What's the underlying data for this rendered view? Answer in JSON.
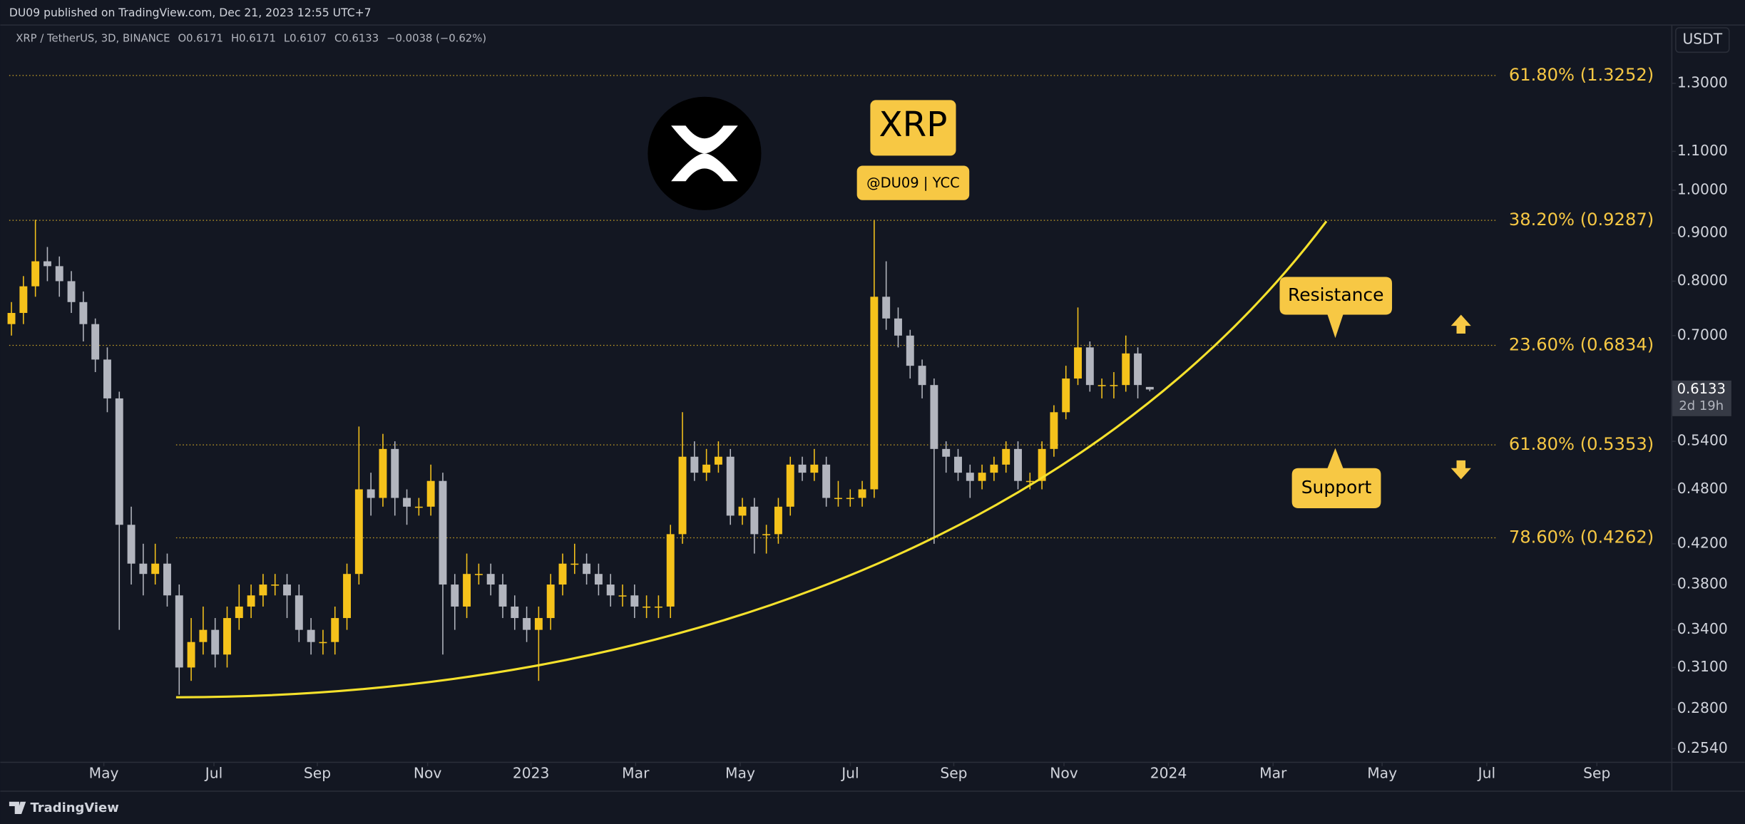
{
  "header": {
    "published": "DU09 published on TradingView.com, Dec 21, 2023 12:55 UTC+7"
  },
  "chart_data": {
    "type": "candlestick",
    "symbol": "XRP / TetherUS, 3D, BINANCE",
    "ohlc_prefixes": [
      "O",
      "H",
      "L",
      "C"
    ],
    "change_label": "−0.0038 (−0.62%)",
    "open": [
      0.72,
      0.74,
      0.79,
      0.84,
      0.83,
      0.8,
      0.76,
      0.72,
      0.66,
      0.6,
      0.44,
      0.4,
      0.39,
      0.4,
      0.37,
      0.31,
      0.33,
      0.34,
      0.32,
      0.35,
      0.36,
      0.37,
      0.38,
      0.38,
      0.37,
      0.34,
      0.33,
      0.33,
      0.35,
      0.39,
      0.48,
      0.47,
      0.53,
      0.47,
      0.46,
      0.46,
      0.49,
      0.38,
      0.36,
      0.39,
      0.39,
      0.38,
      0.36,
      0.35,
      0.34,
      0.35,
      0.38,
      0.4,
      0.4,
      0.39,
      0.38,
      0.37,
      0.37,
      0.36,
      0.36,
      0.36,
      0.43,
      0.52,
      0.5,
      0.51,
      0.52,
      0.45,
      0.46,
      0.43,
      0.43,
      0.46,
      0.51,
      0.5,
      0.51,
      0.47,
      0.47,
      0.47,
      0.48,
      0.77,
      0.73,
      0.7,
      0.65,
      0.62,
      0.53,
      0.52,
      0.5,
      0.49,
      0.5,
      0.51,
      0.53,
      0.49,
      0.49,
      0.53,
      0.58,
      0.63,
      0.68,
      0.62,
      0.62,
      0.62,
      0.67,
      0.6171
    ],
    "high": [
      0.76,
      0.81,
      0.93,
      0.87,
      0.85,
      0.82,
      0.78,
      0.73,
      0.68,
      0.61,
      0.46,
      0.42,
      0.42,
      0.41,
      0.38,
      0.35,
      0.36,
      0.35,
      0.36,
      0.38,
      0.38,
      0.39,
      0.39,
      0.39,
      0.38,
      0.35,
      0.34,
      0.36,
      0.4,
      0.56,
      0.5,
      0.55,
      0.54,
      0.48,
      0.47,
      0.51,
      0.5,
      0.39,
      0.41,
      0.4,
      0.4,
      0.39,
      0.37,
      0.36,
      0.36,
      0.39,
      0.41,
      0.42,
      0.41,
      0.4,
      0.39,
      0.38,
      0.38,
      0.37,
      0.37,
      0.44,
      0.58,
      0.54,
      0.53,
      0.54,
      0.53,
      0.47,
      0.47,
      0.44,
      0.47,
      0.52,
      0.52,
      0.53,
      0.52,
      0.49,
      0.48,
      0.49,
      0.93,
      0.84,
      0.75,
      0.71,
      0.66,
      0.63,
      0.54,
      0.53,
      0.51,
      0.51,
      0.52,
      0.54,
      0.54,
      0.5,
      0.54,
      0.59,
      0.65,
      0.75,
      0.69,
      0.63,
      0.64,
      0.7,
      0.68,
      0.6171
    ],
    "low": [
      0.7,
      0.72,
      0.77,
      0.8,
      0.77,
      0.74,
      0.69,
      0.64,
      0.58,
      0.34,
      0.38,
      0.37,
      0.38,
      0.36,
      0.29,
      0.3,
      0.32,
      0.31,
      0.31,
      0.34,
      0.35,
      0.36,
      0.37,
      0.35,
      0.33,
      0.32,
      0.32,
      0.32,
      0.34,
      0.38,
      0.45,
      0.46,
      0.45,
      0.44,
      0.45,
      0.45,
      0.32,
      0.34,
      0.35,
      0.38,
      0.37,
      0.35,
      0.34,
      0.33,
      0.3,
      0.34,
      0.37,
      0.39,
      0.38,
      0.37,
      0.36,
      0.36,
      0.35,
      0.35,
      0.35,
      0.35,
      0.42,
      0.49,
      0.49,
      0.5,
      0.44,
      0.44,
      0.41,
      0.41,
      0.42,
      0.45,
      0.49,
      0.49,
      0.46,
      0.46,
      0.46,
      0.46,
      0.47,
      0.71,
      0.68,
      0.63,
      0.6,
      0.42,
      0.5,
      0.49,
      0.47,
      0.48,
      0.49,
      0.5,
      0.48,
      0.48,
      0.48,
      0.52,
      0.57,
      0.62,
      0.61,
      0.6,
      0.6,
      0.61,
      0.6,
      0.6107
    ],
    "close": [
      0.74,
      0.79,
      0.84,
      0.83,
      0.8,
      0.76,
      0.72,
      0.66,
      0.6,
      0.44,
      0.4,
      0.39,
      0.4,
      0.37,
      0.31,
      0.33,
      0.34,
      0.32,
      0.35,
      0.36,
      0.37,
      0.38,
      0.38,
      0.37,
      0.34,
      0.33,
      0.33,
      0.35,
      0.39,
      0.48,
      0.47,
      0.53,
      0.47,
      0.46,
      0.46,
      0.49,
      0.38,
      0.36,
      0.39,
      0.39,
      0.38,
      0.36,
      0.35,
      0.34,
      0.35,
      0.38,
      0.4,
      0.4,
      0.39,
      0.38,
      0.37,
      0.37,
      0.36,
      0.36,
      0.36,
      0.43,
      0.52,
      0.5,
      0.51,
      0.52,
      0.45,
      0.46,
      0.43,
      0.43,
      0.46,
      0.51,
      0.5,
      0.51,
      0.47,
      0.47,
      0.47,
      0.48,
      0.77,
      0.73,
      0.7,
      0.65,
      0.62,
      0.53,
      0.52,
      0.5,
      0.49,
      0.5,
      0.51,
      0.53,
      0.49,
      0.49,
      0.53,
      0.58,
      0.63,
      0.68,
      0.62,
      0.62,
      0.62,
      0.67,
      0.62,
      0.6133
    ],
    "up_color": "#f5c21b",
    "down_color": "#b2b5be",
    "log_scale": true,
    "ylim": [
      0.246,
      1.502
    ],
    "yticks": [
      {
        "value": 1.3,
        "label": "1.3000"
      },
      {
        "value": 1.1,
        "label": "1.1000"
      },
      {
        "value": 1.0,
        "label": "1.0000"
      },
      {
        "value": 0.9,
        "label": "0.9000"
      },
      {
        "value": 0.8,
        "label": "0.8000"
      },
      {
        "value": 0.7,
        "label": "0.7000"
      },
      {
        "value": 0.54,
        "label": "0.5400"
      },
      {
        "value": 0.48,
        "label": "0.4800"
      },
      {
        "value": 0.42,
        "label": "0.4200"
      },
      {
        "value": 0.38,
        "label": "0.3800"
      },
      {
        "value": 0.34,
        "label": "0.3400"
      },
      {
        "value": 0.31,
        "label": "0.3100"
      },
      {
        "value": 0.28,
        "label": "0.2800"
      },
      {
        "value": 0.254,
        "label": "0.2540"
      }
    ],
    "xlim": [
      -0.93,
      138.52
    ],
    "xticks": [
      {
        "value": 7.71,
        "label": "May"
      },
      {
        "value": 16.9,
        "label": "Jul"
      },
      {
        "value": 25.53,
        "label": "Sep"
      },
      {
        "value": 34.73,
        "label": "Nov"
      },
      {
        "value": 43.36,
        "label": "2023"
      },
      {
        "value": 52.09,
        "label": "Mar"
      },
      {
        "value": 60.82,
        "label": "May"
      },
      {
        "value": 70.01,
        "label": "Jul"
      },
      {
        "value": 78.64,
        "label": "Sep"
      },
      {
        "value": 87.84,
        "label": "Nov"
      },
      {
        "value": 96.56,
        "label": "2024"
      },
      {
        "value": 105.29,
        "label": "Mar"
      },
      {
        "value": 114.39,
        "label": "May"
      },
      {
        "value": 123.12,
        "label": "Jul"
      },
      {
        "value": 132.31,
        "label": "Sep"
      }
    ],
    "currency": "USDT",
    "countdown": "2d 19h",
    "levels": [
      {
        "value": 1.3252,
        "label": "61.80% (1.3252)"
      },
      {
        "value": 0.9287,
        "label": "38.20% (0.9287)"
      },
      {
        "value": 0.6834,
        "label": "23.60% (0.6834)"
      },
      {
        "value": 0.5353,
        "label": "61.80% (0.5353)"
      },
      {
        "value": 0.4262,
        "label": "78.60% (0.4262)"
      }
    ],
    "annotations": {
      "title": "XRP",
      "author": "@DU09 | YCC",
      "resistance": "Resistance",
      "support": "Support"
    }
  },
  "footer": {
    "brand": "TradingView"
  }
}
